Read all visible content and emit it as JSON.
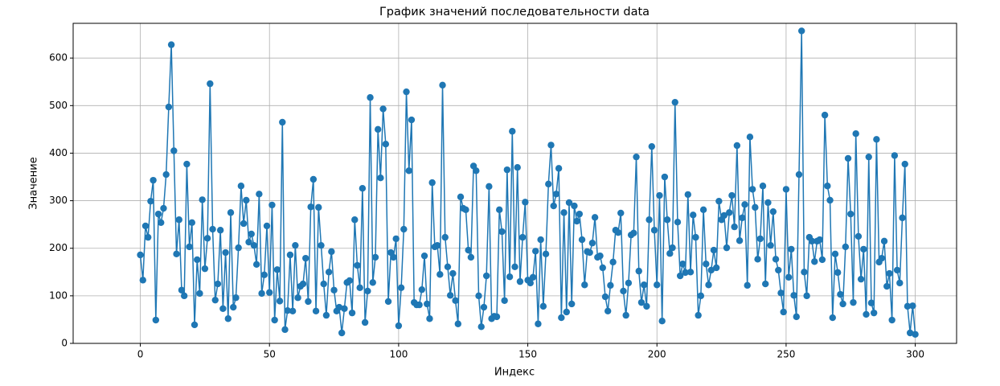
{
  "chart_data": {
    "type": "line",
    "title": "График значений последовательности data",
    "x_label": "Индекс",
    "y_label": "Значение",
    "color": "#1f77b4",
    "grid": true,
    "markers": true,
    "xlim": [
      -26,
      316
    ],
    "ylim": [
      0,
      673
    ],
    "xticks": [
      0,
      50,
      100,
      150,
      200,
      250,
      300
    ],
    "yticks": [
      0,
      100,
      200,
      300,
      400,
      500,
      600
    ],
    "x": [
      0,
      1,
      2,
      3,
      4,
      5,
      6,
      7,
      8,
      9,
      10,
      11,
      12,
      13,
      14,
      15,
      16,
      17,
      18,
      19,
      20,
      21,
      22,
      23,
      24,
      25,
      26,
      27,
      28,
      29,
      30,
      31,
      32,
      33,
      34,
      35,
      36,
      37,
      38,
      39,
      40,
      41,
      42,
      43,
      44,
      45,
      46,
      47,
      48,
      49,
      50,
      51,
      52,
      53,
      54,
      55,
      56,
      57,
      58,
      59,
      60,
      61,
      62,
      63,
      64,
      65,
      66,
      67,
      68,
      69,
      70,
      71,
      72,
      73,
      74,
      75,
      76,
      77,
      78,
      79,
      80,
      81,
      82,
      83,
      84,
      85,
      86,
      87,
      88,
      89,
      90,
      91,
      92,
      93,
      94,
      95,
      96,
      97,
      98,
      99,
      100,
      101,
      102,
      103,
      104,
      105,
      106,
      107,
      108,
      109,
      110,
      111,
      112,
      113,
      114,
      115,
      116,
      117,
      118,
      119,
      120,
      121,
      122,
      123,
      124,
      125,
      126,
      127,
      128,
      129,
      130,
      131,
      132,
      133,
      134,
      135,
      136,
      137,
      138,
      139,
      140,
      141,
      142,
      143,
      144,
      145,
      146,
      147,
      148,
      149,
      150,
      151,
      152,
      153,
      154,
      155,
      156,
      157,
      158,
      159,
      160,
      161,
      162,
      163,
      164,
      165,
      166,
      167,
      168,
      169,
      170,
      171,
      172,
      173,
      174,
      175,
      176,
      177,
      178,
      179,
      180,
      181,
      182,
      183,
      184,
      185,
      186,
      187,
      188,
      189,
      190,
      191,
      192,
      193,
      194,
      195,
      196,
      197,
      198,
      199,
      200,
      201,
      202,
      203,
      204,
      205,
      206,
      207,
      208,
      209,
      210,
      211,
      212,
      213,
      214,
      215,
      216,
      217,
      218,
      219,
      220,
      221,
      222,
      223,
      224,
      225,
      226,
      227,
      228,
      229,
      230,
      231,
      232,
      233,
      234,
      235,
      236,
      237,
      238,
      239,
      240,
      241,
      242,
      243,
      244,
      245,
      246,
      247,
      248,
      249,
      250,
      251,
      252,
      253,
      254,
      255,
      256,
      257,
      258,
      259,
      260,
      261,
      262,
      263,
      264,
      265,
      266,
      267,
      268,
      269,
      270,
      271,
      272,
      273,
      274,
      275,
      276,
      277,
      278,
      279,
      280,
      281,
      282,
      283,
      284,
      285,
      286,
      287,
      288,
      289,
      290,
      291,
      292,
      293,
      294,
      295,
      296,
      297,
      298,
      299,
      300
    ],
    "values": [
      186,
      133,
      247,
      223,
      299,
      343,
      49,
      272,
      254,
      284,
      355,
      497,
      628,
      405,
      188,
      260,
      112,
      100,
      377,
      203,
      254,
      39,
      176,
      105,
      302,
      157,
      221,
      546,
      240,
      91,
      125,
      238,
      73,
      191,
      52,
      275,
      76,
      96,
      201,
      331,
      252,
      301,
      213,
      230,
      206,
      166,
      314,
      105,
      144,
      247,
      107,
      291,
      49,
      155,
      89,
      465,
      29,
      69,
      186,
      68,
      206,
      96,
      120,
      125,
      179,
      88,
      287,
      345,
      68,
      286,
      206,
      125,
      59,
      150,
      193,
      112,
      68,
      76,
      22,
      73,
      128,
      132,
      64,
      260,
      164,
      117,
      326,
      44,
      110,
      517,
      128,
      181,
      450,
      348,
      493,
      419,
      88,
      191,
      181,
      220,
      37,
      117,
      240,
      529,
      363,
      470,
      86,
      81,
      81,
      113,
      184,
      83,
      52,
      338,
      203,
      206,
      145,
      543,
      223,
      161,
      101,
      147,
      90,
      41,
      308,
      284,
      281,
      196,
      181,
      373,
      363,
      100,
      35,
      76,
      142,
      330,
      52,
      57,
      56,
      281,
      235,
      90,
      365,
      140,
      446,
      161,
      370,
      130,
      223,
      297,
      133,
      127,
      139,
      194,
      41,
      218,
      78,
      188,
      335,
      417,
      289,
      314,
      368,
      54,
      275,
      66,
      296,
      83,
      289,
      257,
      272,
      218,
      123,
      193,
      191,
      211,
      265,
      181,
      184,
      159,
      98,
      68,
      122,
      171,
      238,
      233,
      274,
      110,
      59,
      127,
      228,
      232,
      392,
      152,
      86,
      123,
      78,
      260,
      414,
      238,
      123,
      311,
      47,
      350,
      260,
      189,
      201,
      507,
      255,
      142,
      167,
      149,
      313,
      150,
      270,
      223,
      59,
      100,
      281,
      167,
      123,
      154,
      196,
      159,
      299,
      260,
      269,
      201,
      275,
      311,
      245,
      416,
      216,
      264,
      292,
      122,
      434,
      324,
      286,
      177,
      220,
      331,
      125,
      296,
      206,
      277,
      177,
      154,
      106,
      66,
      324,
      139,
      198,
      101,
      56,
      355,
      657,
      150,
      100,
      223,
      215,
      172,
      215,
      218,
      176,
      480,
      331,
      301,
      54,
      188,
      149,
      103,
      83,
      203,
      389,
      272,
      86,
      441,
      225,
      135,
      198,
      61,
      392,
      85,
      64,
      429,
      171,
      179,
      215,
      120,
      147,
      49,
      395,
      154,
      127,
      264,
      377,
      78,
      22,
      79,
      19
    ]
  }
}
